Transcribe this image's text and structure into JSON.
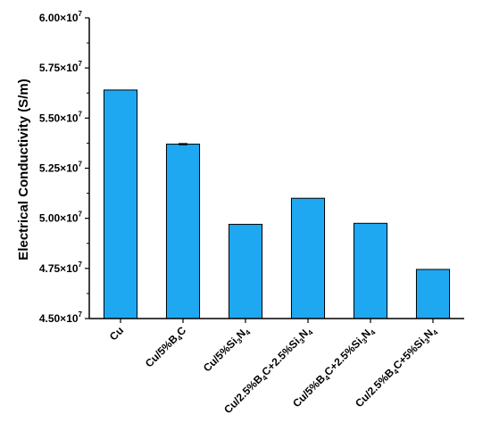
{
  "chart_data": {
    "type": "bar",
    "title": "",
    "xlabel": "",
    "ylabel": "Electrical Conductivity (S/m)",
    "ylim": [
      45000000,
      60000000
    ],
    "y_ticks": [
      {
        "value": 45000000,
        "mantissa": "4.50",
        "times": "×10",
        "exponent": "7"
      },
      {
        "value": 47500000,
        "mantissa": "4.75",
        "times": "×10",
        "exponent": "7"
      },
      {
        "value": 50000000,
        "mantissa": "5.00",
        "times": "×10",
        "exponent": "7"
      },
      {
        "value": 52500000,
        "mantissa": "5.25",
        "times": "×10",
        "exponent": "7"
      },
      {
        "value": 55000000,
        "mantissa": "5.50",
        "times": "×10",
        "exponent": "7"
      },
      {
        "value": 57500000,
        "mantissa": "5.75",
        "times": "×10",
        "exponent": "7"
      },
      {
        "value": 60000000,
        "mantissa": "6.00",
        "times": "×10",
        "exponent": "7"
      }
    ],
    "categories": [
      "Cu",
      "Cu/5%B4C",
      "Cu/5%Si3N4",
      "Cu/2.5%B4C+2.5%Si3N4",
      "Cu/5%B4C+2.5%Si3N4",
      "Cu/2.5%B4C+5%Si3N4"
    ],
    "category_parts": [
      [
        {
          "t": "Cu"
        }
      ],
      [
        {
          "t": "Cu/5%B"
        },
        {
          "t": "4",
          "sub": true
        },
        {
          "t": "C"
        }
      ],
      [
        {
          "t": "Cu/5%Si"
        },
        {
          "t": "3",
          "sub": true
        },
        {
          "t": "N"
        },
        {
          "t": "4",
          "sub": true
        }
      ],
      [
        {
          "t": "Cu/2.5%B"
        },
        {
          "t": "4",
          "sub": true
        },
        {
          "t": "C+2.5%Si"
        },
        {
          "t": "3",
          "sub": true
        },
        {
          "t": "N"
        },
        {
          "t": "4",
          "sub": true
        }
      ],
      [
        {
          "t": "Cu/5%B"
        },
        {
          "t": "4",
          "sub": true
        },
        {
          "t": "C+2.5%Si"
        },
        {
          "t": "3",
          "sub": true
        },
        {
          "t": "N"
        },
        {
          "t": "4",
          "sub": true
        }
      ],
      [
        {
          "t": "Cu/2.5%B"
        },
        {
          "t": "4",
          "sub": true
        },
        {
          "t": "C+5%Si"
        },
        {
          "t": "3",
          "sub": true
        },
        {
          "t": "N"
        },
        {
          "t": "4",
          "sub": true
        }
      ]
    ],
    "values": [
      56400000,
      53700000,
      49700000,
      51000000,
      49750000,
      47450000
    ],
    "errors": [
      0,
      30000,
      0,
      0,
      0,
      0
    ],
    "bar_color": "#1ea8f2",
    "bar_edge_color": "#000000",
    "grid": false,
    "legend": "none"
  }
}
